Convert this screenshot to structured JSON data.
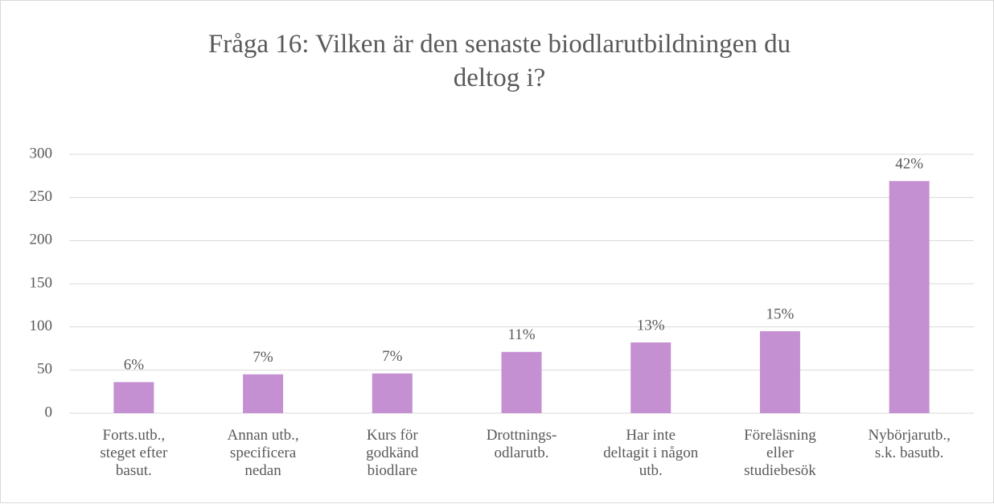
{
  "chart_data": {
    "type": "bar",
    "title": "Fråga 16: Vilken är den senaste biodlarutbildningen du deltog i?",
    "categories": [
      "Forts.utb.,\nsteget efter\nbasut.",
      "Annan utb.,\nspecificera\nnedan",
      "Kurs för\ngodkänd\nbiodlare",
      "Drottnings-\nodlarutb.",
      "Har inte\ndeltagit i någon\nutb.",
      "Föreläsning\neller\nstudiebesök",
      "Nybörjarutb.,\ns.k. basutb."
    ],
    "values": [
      36,
      45,
      46,
      71,
      82,
      95,
      269
    ],
    "value_labels": [
      "6%",
      "7%",
      "7%",
      "11%",
      "13%",
      "15%",
      "42%"
    ],
    "color": "#c490d1",
    "ylim": [
      0,
      300
    ],
    "yticks": [
      0,
      50,
      100,
      150,
      200,
      250,
      300
    ],
    "grid": true
  }
}
